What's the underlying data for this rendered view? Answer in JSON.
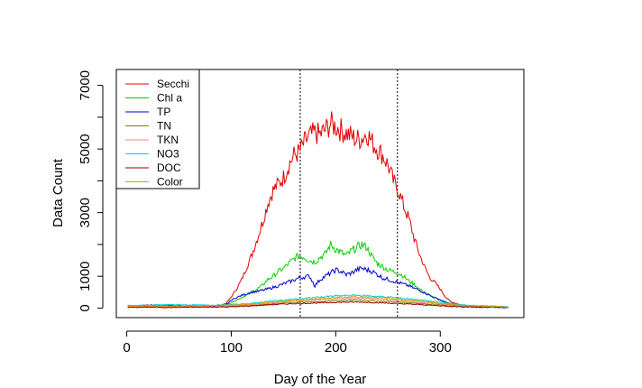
{
  "chart_data": {
    "type": "line",
    "xlabel": "Day of the Year",
    "ylabel": "Data Count",
    "xlim": [
      -10,
      380
    ],
    "ylim": [
      -300,
      7500
    ],
    "x_ticks": [
      0,
      100,
      200,
      300
    ],
    "y_ticks": [
      0,
      1000,
      3000,
      5000,
      7000
    ],
    "legend_position": "top-left",
    "vlines": [
      166,
      259
    ],
    "series": [
      {
        "name": "Secchi",
        "color": "#e00000",
        "x": [
          1,
          10,
          20,
          30,
          40,
          50,
          60,
          70,
          80,
          90,
          95,
          100,
          105,
          110,
          115,
          120,
          125,
          130,
          135,
          140,
          145,
          150,
          155,
          160,
          165,
          170,
          175,
          180,
          185,
          190,
          195,
          200,
          205,
          210,
          215,
          220,
          225,
          230,
          235,
          240,
          245,
          250,
          255,
          260,
          265,
          270,
          275,
          280,
          285,
          290,
          295,
          300,
          305,
          310,
          320,
          330,
          340,
          350,
          360,
          365
        ],
        "y": [
          80,
          60,
          100,
          70,
          90,
          80,
          60,
          70,
          80,
          90,
          150,
          350,
          600,
          900,
          1300,
          1700,
          2200,
          2700,
          3300,
          3700,
          3900,
          4100,
          4500,
          4800,
          4900,
          5200,
          5400,
          5500,
          5450,
          5600,
          5800,
          5700,
          5600,
          5500,
          5400,
          5300,
          5350,
          5500,
          5200,
          5000,
          4800,
          4500,
          4000,
          3700,
          3200,
          2800,
          2200,
          1700,
          1300,
          950,
          800,
          600,
          350,
          200,
          100,
          60,
          40,
          60,
          40,
          30
        ]
      },
      {
        "name": "Chl a",
        "color": "#00d000",
        "x": [
          1,
          10,
          20,
          30,
          40,
          50,
          60,
          70,
          80,
          90,
          95,
          100,
          105,
          110,
          115,
          120,
          125,
          130,
          135,
          140,
          145,
          150,
          155,
          160,
          165,
          170,
          175,
          180,
          185,
          190,
          195,
          200,
          205,
          210,
          215,
          220,
          225,
          230,
          235,
          240,
          245,
          250,
          255,
          260,
          265,
          270,
          275,
          280,
          285,
          290,
          295,
          300,
          305,
          310,
          320,
          330,
          340,
          350,
          360,
          365
        ],
        "y": [
          60,
          50,
          70,
          60,
          80,
          60,
          50,
          60,
          70,
          80,
          100,
          180,
          250,
          330,
          420,
          520,
          600,
          720,
          900,
          1000,
          1150,
          1250,
          1400,
          1550,
          1650,
          1600,
          1500,
          1450,
          1600,
          1700,
          2000,
          1850,
          1750,
          1650,
          1800,
          1900,
          2000,
          1900,
          1600,
          1400,
          1300,
          1200,
          1150,
          1100,
          1000,
          850,
          750,
          600,
          480,
          400,
          320,
          260,
          200,
          150,
          80,
          50,
          40,
          40,
          30,
          20
        ]
      },
      {
        "name": "TP",
        "color": "#0000cc",
        "x": [
          1,
          10,
          20,
          30,
          40,
          50,
          60,
          70,
          80,
          90,
          95,
          100,
          105,
          110,
          115,
          120,
          125,
          130,
          135,
          140,
          145,
          150,
          155,
          160,
          165,
          170,
          175,
          180,
          185,
          190,
          195,
          200,
          205,
          210,
          215,
          220,
          225,
          230,
          235,
          240,
          245,
          250,
          255,
          260,
          265,
          270,
          275,
          280,
          285,
          290,
          295,
          300,
          305,
          310,
          320,
          330,
          340,
          350,
          360,
          365
        ],
        "y": [
          50,
          40,
          60,
          50,
          70,
          50,
          40,
          50,
          60,
          70,
          100,
          250,
          330,
          400,
          450,
          500,
          520,
          560,
          600,
          650,
          700,
          760,
          820,
          880,
          950,
          980,
          1000,
          700,
          900,
          1000,
          1100,
          1200,
          1150,
          1050,
          1100,
          1200,
          1250,
          1200,
          1150,
          1050,
          950,
          900,
          850,
          800,
          750,
          700,
          620,
          560,
          480,
          400,
          320,
          250,
          180,
          120,
          60,
          40,
          30,
          30,
          20,
          20
        ]
      },
      {
        "name": "TN",
        "color": "#808000",
        "x": [
          1,
          20,
          40,
          60,
          80,
          100,
          120,
          140,
          160,
          180,
          200,
          220,
          240,
          260,
          280,
          300,
          320,
          340,
          360,
          365
        ],
        "y": [
          30,
          40,
          30,
          40,
          40,
          60,
          90,
          140,
          180,
          200,
          230,
          250,
          220,
          190,
          150,
          100,
          60,
          40,
          30,
          20
        ]
      },
      {
        "name": "TKN",
        "color": "#ff8080",
        "x": [
          1,
          20,
          40,
          60,
          80,
          100,
          120,
          140,
          160,
          180,
          200,
          220,
          240,
          260,
          280,
          300,
          320,
          340,
          360,
          365
        ],
        "y": [
          40,
          50,
          40,
          50,
          50,
          70,
          110,
          170,
          220,
          260,
          290,
          310,
          280,
          240,
          190,
          140,
          80,
          50,
          40,
          30
        ]
      },
      {
        "name": "NO3",
        "color": "#00d0d0",
        "x": [
          1,
          20,
          40,
          60,
          80,
          100,
          120,
          140,
          160,
          180,
          200,
          220,
          240,
          260,
          280,
          300,
          320,
          340,
          360,
          365
        ],
        "y": [
          80,
          90,
          110,
          100,
          90,
          110,
          150,
          230,
          280,
          330,
          380,
          400,
          370,
          320,
          260,
          180,
          100,
          70,
          50,
          40
        ]
      },
      {
        "name": "DOC",
        "color": "#a00000",
        "x": [
          1,
          20,
          40,
          60,
          80,
          100,
          120,
          140,
          160,
          180,
          200,
          220,
          240,
          260,
          280,
          300,
          320,
          340,
          360,
          365
        ],
        "y": [
          20,
          30,
          20,
          30,
          30,
          40,
          70,
          110,
          140,
          160,
          180,
          190,
          170,
          140,
          110,
          70,
          40,
          30,
          20,
          10
        ]
      },
      {
        "name": "Color",
        "color": "#e0a000",
        "x": [
          1,
          20,
          40,
          60,
          80,
          100,
          120,
          140,
          160,
          180,
          200,
          220,
          240,
          260,
          280,
          300,
          320,
          340,
          360,
          365
        ],
        "y": [
          60,
          70,
          60,
          70,
          70,
          90,
          130,
          190,
          240,
          290,
          330,
          350,
          330,
          280,
          220,
          150,
          90,
          60,
          40,
          30
        ]
      }
    ]
  }
}
